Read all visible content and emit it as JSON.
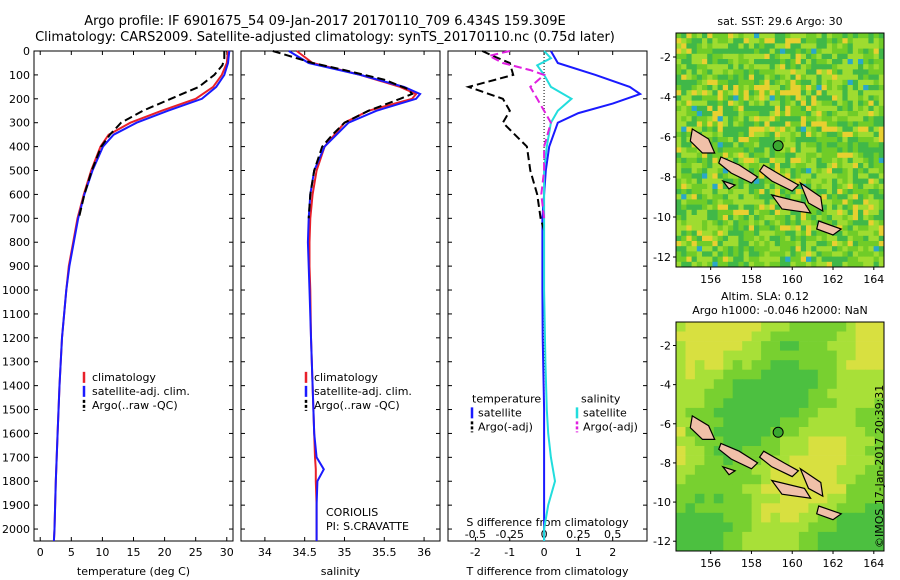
{
  "title": {
    "line1": "Argo profile: IF 6901675_54 09-Jan-2017 20170110_709 6.434S 159.309E",
    "line2": "Climatology: CARS2009. Satellite-adjusted climatology: synTS_20170110.nc (0.75d later)"
  },
  "watermark": "©IMOS 17-Jan-2017 20:39:31",
  "colors": {
    "climatology": "#e8202a",
    "satellite": "#1a1aff",
    "argo": "#000000",
    "sal_sat": "#22dddd",
    "sal_argo": "#e020e0",
    "land": "#f0c0a8"
  },
  "depth_axis": {
    "min": 0,
    "max": 2050,
    "ticks": [
      0,
      100,
      200,
      300,
      400,
      500,
      600,
      700,
      800,
      900,
      1000,
      1100,
      1200,
      1300,
      1400,
      1500,
      1600,
      1700,
      1800,
      1900,
      2000
    ]
  },
  "chart_data": [
    {
      "id": "temperature",
      "type": "line",
      "xlabel": "temperature (deg C)",
      "xlim": [
        -1,
        31
      ],
      "xticks": [
        0,
        5,
        10,
        15,
        20,
        25,
        30
      ],
      "legend": [
        "climatology",
        "satellite-adj. clim.",
        "Argo(..raw -QC)"
      ],
      "series": [
        {
          "name": "climatology",
          "depth": [
            0,
            50,
            100,
            150,
            200,
            250,
            300,
            350,
            400,
            500,
            600,
            700,
            800,
            900,
            1000,
            1200,
            1400,
            1600,
            1800,
            2000,
            2050
          ],
          "values": [
            30.2,
            30.0,
            29.2,
            27.8,
            25.0,
            19.5,
            14.5,
            11.0,
            9.7,
            8.2,
            7.0,
            6.0,
            5.3,
            4.6,
            4.2,
            3.5,
            3.1,
            2.8,
            2.5,
            2.3,
            2.2
          ]
        },
        {
          "name": "satellite-adj. clim.",
          "depth": [
            0,
            50,
            100,
            150,
            200,
            250,
            300,
            350,
            400,
            500,
            600,
            700,
            800,
            900,
            1000,
            1200,
            1400,
            1600,
            1800,
            2000,
            2050
          ],
          "values": [
            30.4,
            30.2,
            29.6,
            28.3,
            26.0,
            20.5,
            15.5,
            11.8,
            10.1,
            8.4,
            7.1,
            6.1,
            5.4,
            4.7,
            4.2,
            3.5,
            3.1,
            2.8,
            2.5,
            2.3,
            2.2
          ]
        },
        {
          "name": "Argo(..raw -QC)",
          "depth": [
            0,
            10,
            30,
            60,
            100,
            150,
            200,
            250,
            300,
            350,
            400,
            500,
            600,
            700
          ],
          "values": [
            29.6,
            29.6,
            29.6,
            29.3,
            28.0,
            25.5,
            21.0,
            16.5,
            13.0,
            11.2,
            9.8,
            8.3,
            7.1,
            6.2
          ]
        }
      ]
    },
    {
      "id": "salinity",
      "type": "line",
      "xlabel": "salinity",
      "xlim": [
        33.7,
        36.2
      ],
      "xticks": [
        34,
        34.5,
        35,
        35.5,
        36
      ],
      "xticklabels": [
        "34",
        "34.5",
        "35",
        "35.5",
        "36"
      ],
      "legend": [
        "climatology",
        "satellite-adj. clim.",
        "Argo(..raw -QC)"
      ],
      "series": [
        {
          "name": "climatology",
          "depth": [
            0,
            50,
            100,
            150,
            180,
            200,
            250,
            300,
            400,
            500,
            600,
            700,
            800,
            900,
            1000,
            1200,
            1400,
            1600,
            1700,
            1750,
            1800,
            1900,
            2000,
            2050
          ],
          "values": [
            34.4,
            34.6,
            35.2,
            35.7,
            35.9,
            35.85,
            35.3,
            35.0,
            34.75,
            34.65,
            34.6,
            34.57,
            34.56,
            34.56,
            34.57,
            34.58,
            34.6,
            34.62,
            34.63,
            34.64,
            34.64,
            34.65,
            34.65,
            34.65
          ]
        },
        {
          "name": "satellite-adj. clim.",
          "depth": [
            0,
            50,
            100,
            150,
            180,
            200,
            250,
            300,
            400,
            500,
            600,
            700,
            800,
            900,
            1000,
            1200,
            1400,
            1600,
            1700,
            1750,
            1800,
            1900,
            2000,
            2050
          ],
          "values": [
            34.3,
            34.55,
            35.2,
            35.75,
            35.95,
            35.9,
            35.4,
            35.05,
            34.75,
            34.62,
            34.57,
            34.55,
            34.54,
            34.55,
            34.56,
            34.58,
            34.6,
            34.62,
            34.65,
            34.74,
            34.66,
            34.65,
            34.65,
            34.65
          ]
        },
        {
          "name": "Argo(..raw -QC)",
          "depth": [
            0,
            20,
            50,
            80,
            120,
            160,
            180,
            200,
            250,
            300,
            350,
            400,
            500,
            600,
            700
          ],
          "values": [
            34.1,
            34.3,
            34.6,
            35.0,
            35.5,
            35.8,
            35.85,
            35.7,
            35.3,
            35.0,
            34.85,
            34.72,
            34.62,
            34.57,
            34.55
          ]
        }
      ]
    },
    {
      "id": "difference",
      "type": "line",
      "xlabel": "T difference from climatology",
      "xlim": [
        -2.8,
        3.0
      ],
      "xticks": [
        -2,
        -1,
        0,
        1,
        2
      ],
      "x2label": "S difference from climatology",
      "x2lim": [
        -0.7,
        0.75
      ],
      "x2ticks": [
        -0.5,
        -0.25,
        0,
        0.25,
        0.5
      ],
      "x2ticklabels": [
        "-0.5",
        "-0.25",
        "0",
        "0.25",
        "0.5"
      ],
      "legend_title_temperature": "temperature",
      "legend_title_salinity": "salinity",
      "legend": [
        "satellite",
        "Argo(-adj)",
        "satellite",
        "Argo(-adj)"
      ],
      "series": [
        {
          "name": "temperature satellite",
          "depth": [
            0,
            50,
            100,
            150,
            180,
            220,
            260,
            300,
            400,
            500,
            600,
            700,
            800,
            1000,
            1200,
            1500,
            1800,
            2000,
            2050
          ],
          "values": [
            0.2,
            0.4,
            1.5,
            2.5,
            2.8,
            2.0,
            1.0,
            0.4,
            0.15,
            0.05,
            0.0,
            -0.05,
            -0.05,
            -0.05,
            -0.04,
            0.0,
            0.0,
            0.0,
            0.0
          ]
        },
        {
          "name": "temperature Argo(-adj)",
          "depth": [
            0,
            20,
            50,
            100,
            150,
            200,
            250,
            300,
            400,
            500,
            600,
            700,
            750
          ],
          "values": [
            -1.8,
            -1.5,
            -1.0,
            -0.9,
            -2.2,
            -1.2,
            -1.0,
            -1.2,
            -0.5,
            -0.4,
            -0.2,
            -0.1,
            0.0
          ]
        },
        {
          "name": "salinity satellite",
          "depth": [
            0,
            30,
            60,
            100,
            150,
            200,
            250,
            300,
            400,
            500,
            700,
            1000,
            1300,
            1500,
            1600,
            1700,
            1800,
            1900,
            2000,
            2050
          ],
          "values": [
            0.0,
            0.05,
            -0.05,
            0.0,
            0.05,
            0.2,
            0.1,
            0.05,
            0.02,
            0.0,
            0.0,
            0.0,
            0.01,
            0.02,
            0.03,
            0.05,
            0.08,
            0.03,
            0.0,
            0.0
          ]
        },
        {
          "name": "salinity Argo(-adj)",
          "depth": [
            0,
            20,
            50,
            80,
            100,
            150,
            200,
            250,
            300,
            400,
            500,
            600,
            700
          ],
          "values": [
            -0.25,
            -0.4,
            -0.3,
            -0.1,
            0.0,
            -0.1,
            -0.05,
            0.0,
            0.05,
            0.0,
            0.0,
            -0.02,
            0.0
          ]
        }
      ]
    },
    {
      "id": "sst_map",
      "type": "heatmap",
      "title": "sat. SST: 29.6 Argo: 30",
      "xticks": [
        156,
        158,
        160,
        162,
        164
      ],
      "yticks": [
        -2,
        -4,
        -6,
        -8,
        -10,
        -12
      ],
      "xlim": [
        154.3,
        164.5
      ],
      "ylim": [
        -12.5,
        -0.8
      ],
      "argo_position": {
        "lon": 159.309,
        "lat": -6.434
      }
    },
    {
      "id": "sla_map",
      "type": "heatmap",
      "title_line1": "Altim. SLA: 0.12",
      "title_line2": "Argo h1000: -0.046 h2000: NaN",
      "xticks": [
        156,
        158,
        160,
        162,
        164
      ],
      "yticks": [
        -2,
        -4,
        -6,
        -8,
        -10,
        -12
      ],
      "xlim": [
        154.3,
        164.5
      ],
      "ylim": [
        -12.5,
        -0.8
      ],
      "argo_position": {
        "lon": 159.309,
        "lat": -6.434
      }
    }
  ],
  "annotations": {
    "institution": "CORIOLIS",
    "pi": "PI: S.CRAVATTE"
  }
}
